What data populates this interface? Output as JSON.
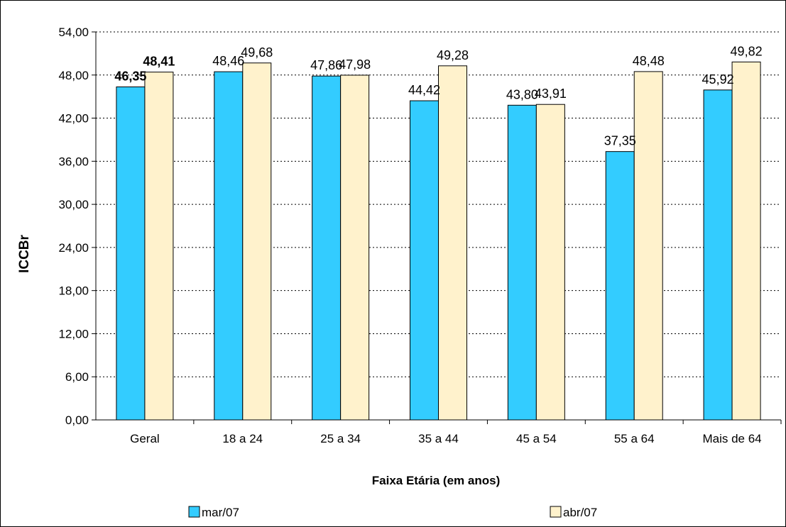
{
  "chart_data": {
    "type": "bar",
    "title": "",
    "xlabel": "Faixa Etária (em anos)",
    "ylabel": "ICCBr",
    "categories": [
      "Geral",
      "18 a 24",
      "25 a 34",
      "35 a 44",
      "45 a 54",
      "55 a 64",
      "Mais de 64"
    ],
    "y_ticks": [
      "0,00",
      "6,00",
      "12,00",
      "18,00",
      "24,00",
      "30,00",
      "36,00",
      "42,00",
      "48,00",
      "54,00"
    ],
    "ylim": [
      0,
      54
    ],
    "grid": true,
    "legend_position": "bottom",
    "series": [
      {
        "name": "mar/07",
        "color": "#33CCFF",
        "values": [
          46.35,
          48.46,
          47.86,
          44.42,
          43.8,
          37.35,
          45.92
        ],
        "labels": [
          "46,35",
          "48,46",
          "47,86",
          "44,42",
          "43,80",
          "37,35",
          "45,92"
        ]
      },
      {
        "name": "abr/07",
        "color": "#FFF2CC",
        "values": [
          48.41,
          49.68,
          47.98,
          49.28,
          43.91,
          48.48,
          49.82
        ],
        "labels": [
          "48,41",
          "49,68",
          "47,98",
          "49,28",
          "43,91",
          "48,48",
          "49,82"
        ]
      }
    ],
    "bold_label_categories": [
      "Geral"
    ]
  }
}
